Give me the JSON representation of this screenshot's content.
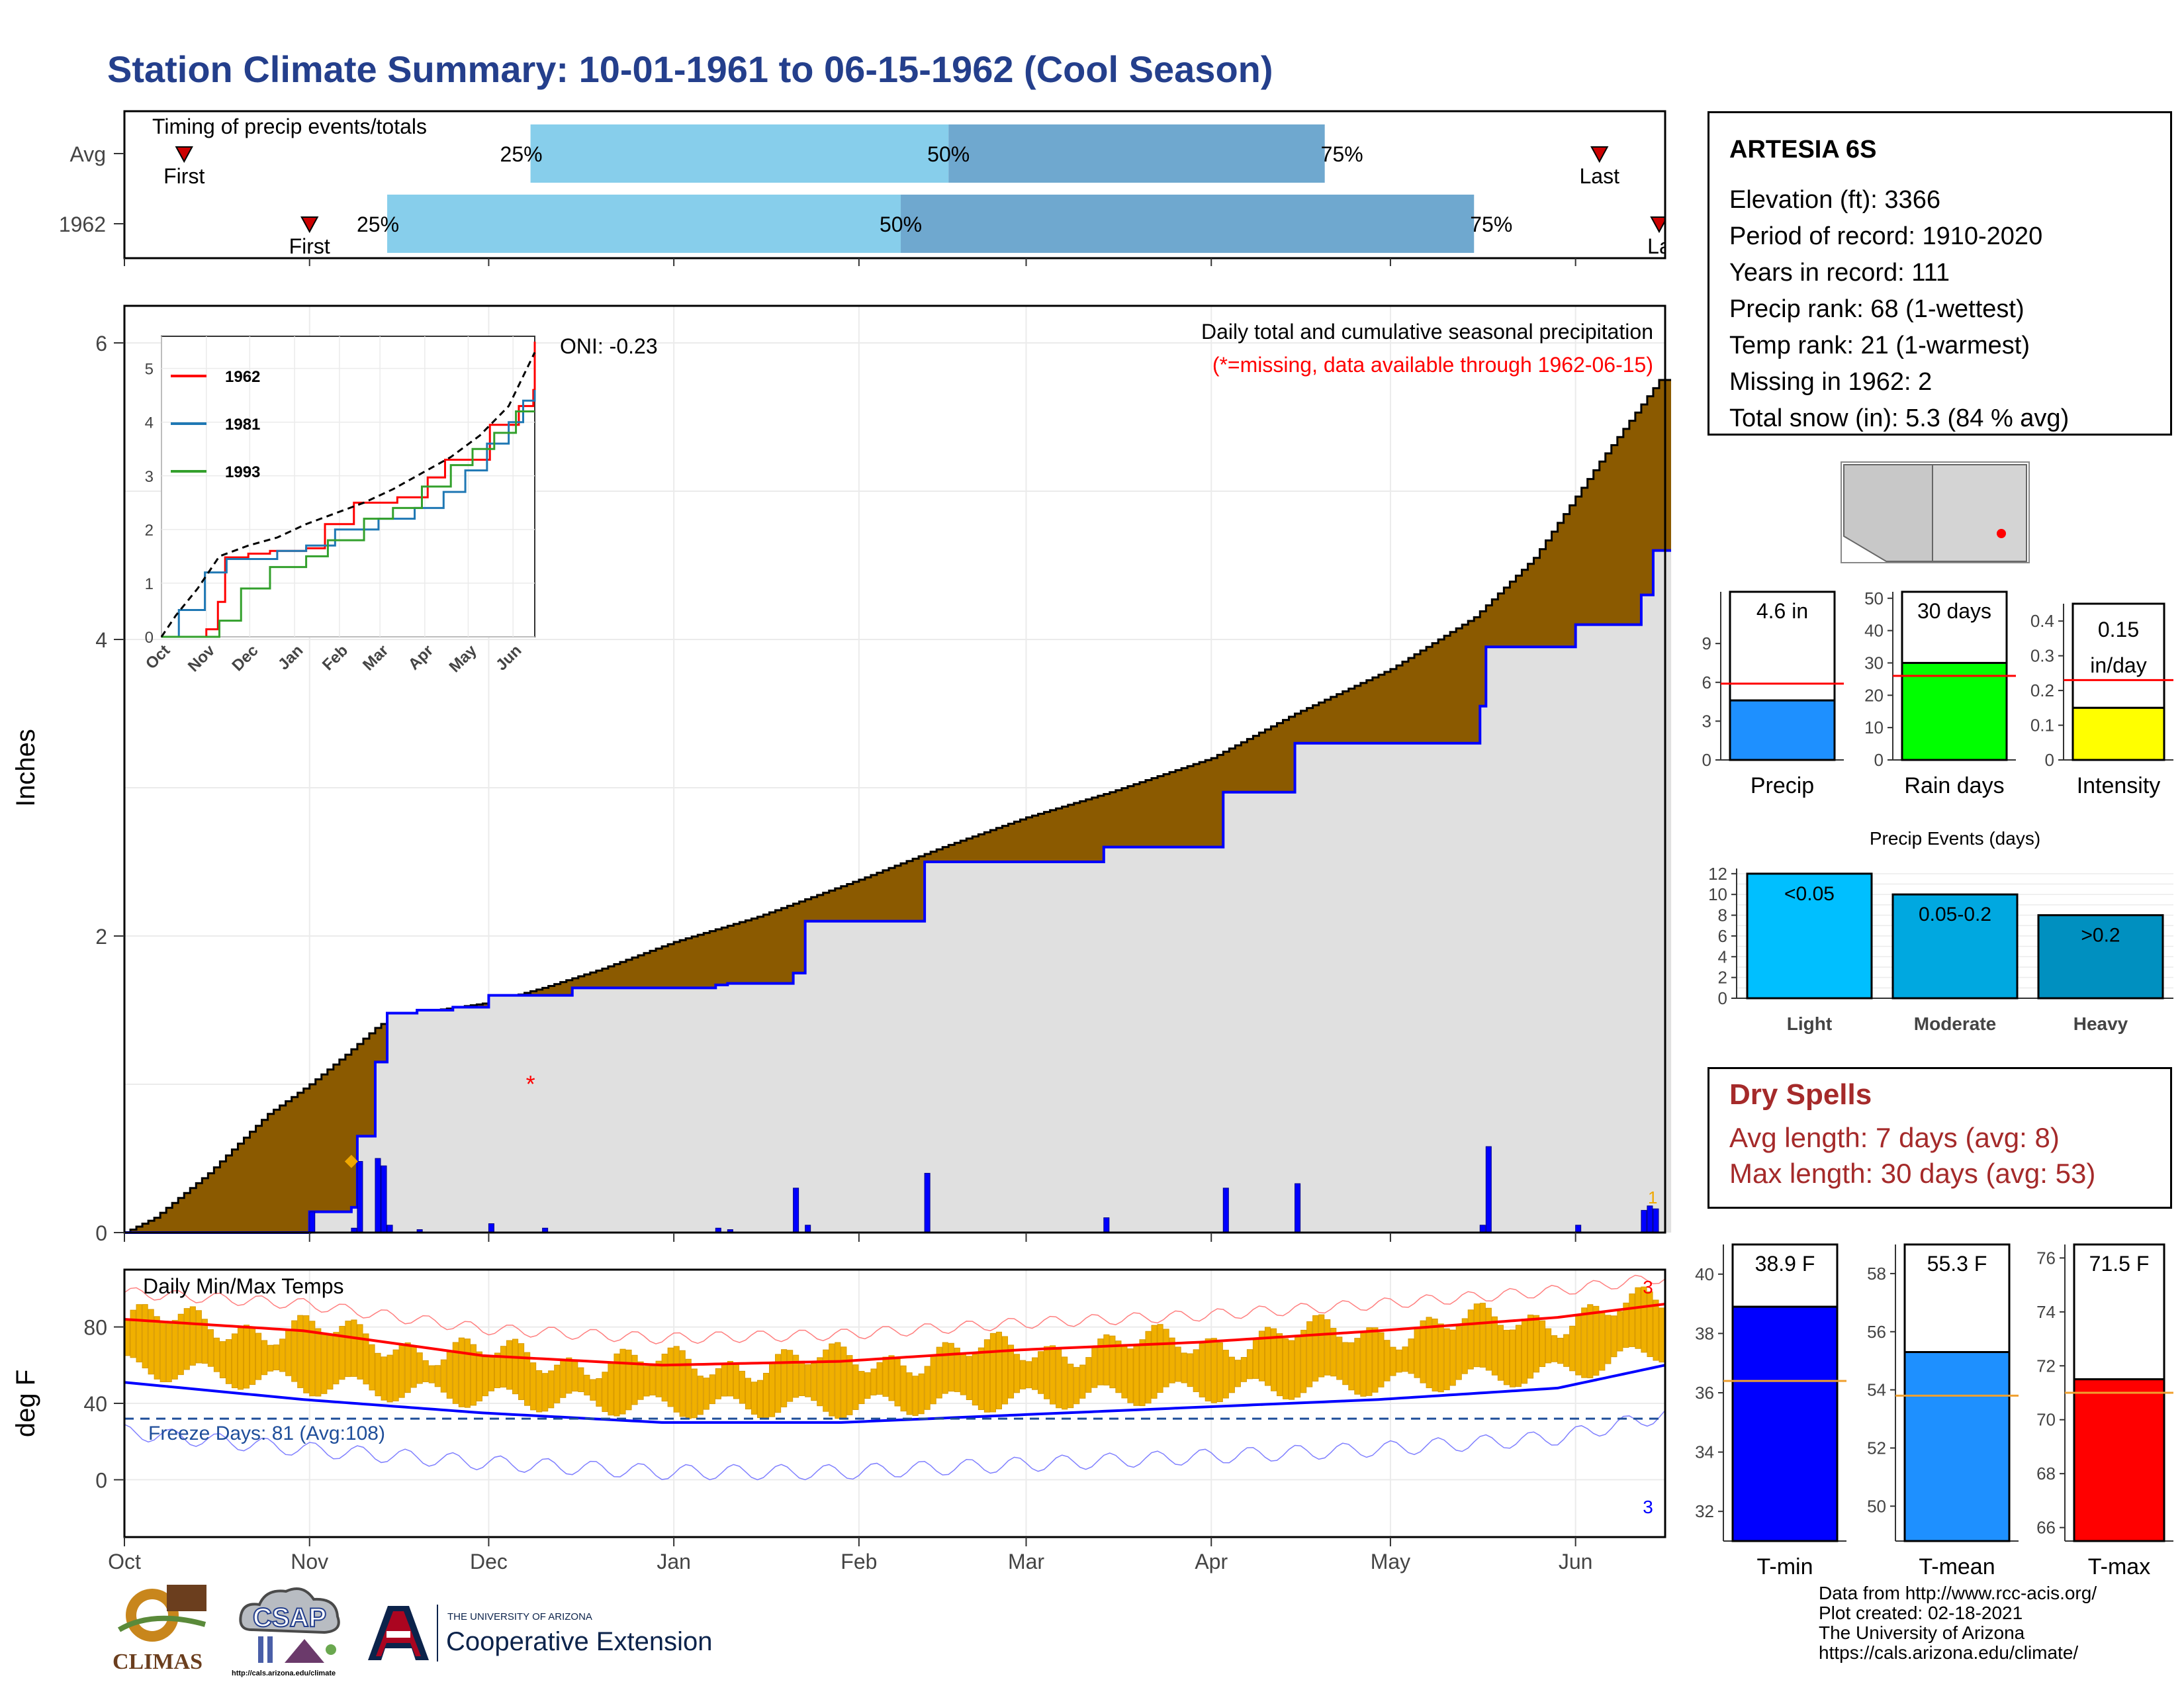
{
  "title": "Station Climate Summary: 10-01-1961 to 06-15-1962 (Cool Season)",
  "colors": {
    "title": "#243f8c",
    "q_light": "#87ceeb",
    "q_dark": "#6fa8cf",
    "brown": "#8b5a00",
    "gray_fill": "#e0e0e0",
    "blue_line": "#0000ff",
    "red": "#ff0000",
    "orange": "#f0a800",
    "dry_spell_red": "#a52a2a"
  },
  "timing": {
    "title": "Timing of precip events/totals",
    "rows": [
      {
        "label": "Avg",
        "first_date": "1961-10-11",
        "last_date": "1962-06-05",
        "q25": "1961-12-08",
        "q50": "1962-02-16",
        "q75": "1962-04-20",
        "first_label": "First",
        "last_label": "Last",
        "q25_label": "25%",
        "q50_label": "50%",
        "q75_label": "75%"
      },
      {
        "label": "1962",
        "first_date": "1961-11-01",
        "last_date": "1962-06-15",
        "q25": "1961-11-14",
        "q50": "1962-02-08",
        "q75": "1962-05-15",
        "first_label": "First",
        "last_label": "La",
        "q25_label": "25%",
        "q50_label": "50%",
        "q75_label": "75%"
      }
    ]
  },
  "chart_data": [
    {
      "type": "area",
      "name": "cumulative_precip",
      "title": "Daily total and cumulative seasonal precipitation",
      "subtitle": "(*=missing, data available through 1962-06-15)",
      "oni_label": "ONI: -0.23",
      "ylabel": "Inches",
      "ylim": [
        0,
        6.25
      ],
      "yticks": [
        0,
        2,
        4,
        6
      ],
      "xlim": [
        "1961-10-01",
        "1962-06-16"
      ],
      "xticks": [
        "Oct",
        "Nov",
        "Dec",
        "Jan",
        "Feb",
        "Mar",
        "Apr",
        "May",
        "Jun"
      ],
      "avg_cumulative": [
        [
          "1961-10-01",
          0.0
        ],
        [
          "1961-10-06",
          0.1
        ],
        [
          "1961-10-15",
          0.4
        ],
        [
          "1961-10-25",
          0.8
        ],
        [
          "1961-11-01",
          1.0
        ],
        [
          "1961-11-07",
          1.2
        ],
        [
          "1961-11-12",
          1.38
        ],
        [
          "1961-11-15",
          1.46
        ],
        [
          "1961-12-01",
          1.55
        ],
        [
          "1961-12-10",
          1.65
        ],
        [
          "1961-12-20",
          1.78
        ],
        [
          "1962-01-01",
          1.96
        ],
        [
          "1962-01-15",
          2.13
        ],
        [
          "1962-02-01",
          2.38
        ],
        [
          "1962-02-15",
          2.6
        ],
        [
          "1962-03-01",
          2.8
        ],
        [
          "1962-03-15",
          2.97
        ],
        [
          "1962-04-01",
          3.2
        ],
        [
          "1962-04-15",
          3.5
        ],
        [
          "1962-05-01",
          3.8
        ],
        [
          "1962-05-15",
          4.15
        ],
        [
          "1962-05-25",
          4.55
        ],
        [
          "1962-06-05",
          5.2
        ],
        [
          "1962-06-15",
          5.75
        ]
      ],
      "cumulative_1962": [
        [
          "1961-10-01",
          0.0
        ],
        [
          "1961-10-31",
          0.0
        ],
        [
          "1961-11-01",
          0.14
        ],
        [
          "1961-11-08",
          0.17
        ],
        [
          "1961-11-09",
          0.65
        ],
        [
          "1961-11-12",
          1.15
        ],
        [
          "1961-11-14",
          1.48
        ],
        [
          "1961-11-19",
          1.5
        ],
        [
          "1961-11-25",
          1.52
        ],
        [
          "1961-12-01",
          1.6
        ],
        [
          "1961-12-15",
          1.65
        ],
        [
          "1962-01-08",
          1.67
        ],
        [
          "1962-01-10",
          1.68
        ],
        [
          "1962-01-21",
          1.75
        ],
        [
          "1962-01-23",
          2.1
        ],
        [
          "1962-02-12",
          2.5
        ],
        [
          "1962-03-14",
          2.6
        ],
        [
          "1962-04-03",
          2.97
        ],
        [
          "1962-04-15",
          3.3
        ],
        [
          "1962-05-16",
          3.55
        ],
        [
          "1962-05-17",
          3.95
        ],
        [
          "1962-06-01",
          4.1
        ],
        [
          "1962-06-12",
          4.3
        ],
        [
          "1962-06-14",
          4.6
        ]
      ],
      "daily_1962": [
        [
          "1961-11-01",
          0.14
        ],
        [
          "1961-11-08",
          0.03
        ],
        [
          "1961-11-09",
          0.48
        ],
        [
          "1961-11-12",
          0.5
        ],
        [
          "1961-11-13",
          0.45
        ],
        [
          "1961-11-14",
          0.05
        ],
        [
          "1961-11-19",
          0.02
        ],
        [
          "1961-12-01",
          0.06
        ],
        [
          "1961-12-10",
          0.03
        ],
        [
          "1962-01-08",
          0.03
        ],
        [
          "1962-01-10",
          0.02
        ],
        [
          "1962-01-21",
          0.3
        ],
        [
          "1962-01-23",
          0.05
        ],
        [
          "1962-02-12",
          0.4
        ],
        [
          "1962-03-14",
          0.1
        ],
        [
          "1962-04-03",
          0.3
        ],
        [
          "1962-04-15",
          0.33
        ],
        [
          "1962-05-16",
          0.05
        ],
        [
          "1962-05-17",
          0.58
        ],
        [
          "1962-06-01",
          0.05
        ],
        [
          "1962-06-12",
          0.15
        ],
        [
          "1962-06-13",
          0.18
        ],
        [
          "1962-06-14",
          0.16
        ]
      ],
      "missing_dates": [
        "1961-12-08"
      ],
      "snow_marker_date": "1961-11-08",
      "snow_marker_value": 0.48,
      "end_label": "1"
    },
    {
      "type": "line",
      "name": "inset_cumulative",
      "yticks": [
        0,
        1,
        2,
        3,
        4,
        5
      ],
      "ylim": [
        0,
        5.6
      ],
      "xticks": [
        "Oct",
        "Nov",
        "Dec",
        "Jan",
        "Feb",
        "Mar",
        "Apr",
        "May",
        "Jun"
      ],
      "series": [
        {
          "name": "1962",
          "color": "#ff0000",
          "points": [
            [
              0,
              0
            ],
            [
              30,
              0
            ],
            [
              31,
              0.14
            ],
            [
              39,
              0.65
            ],
            [
              44,
              1.48
            ],
            [
              60,
              1.55
            ],
            [
              75,
              1.6
            ],
            [
              100,
              1.65
            ],
            [
              113,
              2.1
            ],
            [
              133,
              2.5
            ],
            [
              163,
              2.6
            ],
            [
              184,
              2.97
            ],
            [
              196,
              3.3
            ],
            [
              227,
              3.95
            ],
            [
              247,
              4.3
            ],
            [
              257,
              4.6
            ],
            [
              258,
              5.5
            ]
          ]
        },
        {
          "name": "1981",
          "color": "#1f78b4",
          "points": [
            [
              0,
              0
            ],
            [
              12,
              0.5
            ],
            [
              30,
              1.2
            ],
            [
              45,
              1.45
            ],
            [
              80,
              1.6
            ],
            [
              100,
              1.7
            ],
            [
              120,
              2.0
            ],
            [
              150,
              2.2
            ],
            [
              175,
              2.4
            ],
            [
              195,
              2.7
            ],
            [
              210,
              3.1
            ],
            [
              225,
              3.6
            ],
            [
              240,
              4.0
            ],
            [
              250,
              4.4
            ],
            [
              258,
              4.6
            ]
          ]
        },
        {
          "name": "1993",
          "color": "#33a02c",
          "points": [
            [
              0,
              0
            ],
            [
              40,
              0.3
            ],
            [
              55,
              0.9
            ],
            [
              75,
              1.3
            ],
            [
              100,
              1.5
            ],
            [
              115,
              1.8
            ],
            [
              140,
              2.2
            ],
            [
              160,
              2.4
            ],
            [
              180,
              2.8
            ],
            [
              200,
              3.2
            ],
            [
              215,
              3.5
            ],
            [
              230,
              3.8
            ],
            [
              245,
              4.2
            ],
            [
              258,
              4.2
            ]
          ]
        },
        {
          "name": "avg",
          "color": "#000000",
          "dashed": true,
          "points": [
            [
              0,
              0
            ],
            [
              10,
              0.4
            ],
            [
              25,
              0.9
            ],
            [
              40,
              1.5
            ],
            [
              60,
              1.7
            ],
            [
              80,
              1.85
            ],
            [
              100,
              2.1
            ],
            [
              120,
              2.3
            ],
            [
              140,
              2.5
            ],
            [
              160,
              2.75
            ],
            [
              180,
              3.05
            ],
            [
              200,
              3.35
            ],
            [
              220,
              3.75
            ],
            [
              240,
              4.3
            ],
            [
              258,
              5.3
            ]
          ]
        }
      ]
    },
    {
      "type": "bar",
      "name": "temperatures",
      "title": "Daily Min/Max Temps",
      "ylabel": "deg F",
      "ylim": [
        -30,
        110
      ],
      "yticks": [
        0,
        40,
        80
      ],
      "freeze_label": "Freeze Days: 81 (Avg:108)",
      "freeze_line": 32,
      "avg_max": [
        [
          0,
          84
        ],
        [
          30,
          78
        ],
        [
          60,
          65
        ],
        [
          90,
          60
        ],
        [
          120,
          62
        ],
        [
          150,
          68
        ],
        [
          180,
          72
        ],
        [
          210,
          78
        ],
        [
          240,
          85
        ],
        [
          258,
          92
        ]
      ],
      "avg_min": [
        [
          0,
          51
        ],
        [
          30,
          42
        ],
        [
          60,
          35
        ],
        [
          90,
          30
        ],
        [
          120,
          30
        ],
        [
          150,
          34
        ],
        [
          180,
          38
        ],
        [
          210,
          42
        ],
        [
          240,
          48
        ],
        [
          258,
          60
        ]
      ],
      "max_label": "3",
      "min_label": "3"
    },
    {
      "type": "bar",
      "name": "precip_total",
      "categories": [
        "Precip"
      ],
      "values": [
        4.6
      ],
      "average": 5.9,
      "ylim": [
        0,
        13
      ],
      "yticks": [
        0,
        3,
        6,
        9
      ],
      "label": "4.6 in"
    },
    {
      "type": "bar",
      "name": "rain_days",
      "categories": [
        "Rain days"
      ],
      "values": [
        30
      ],
      "average": 26,
      "ylim": [
        0,
        52
      ],
      "yticks": [
        0,
        10,
        20,
        30,
        40,
        50
      ],
      "label": "30 days"
    },
    {
      "type": "bar",
      "name": "intensity",
      "categories": [
        "Intensity"
      ],
      "values": [
        0.15
      ],
      "average": 0.23,
      "ylim": [
        0,
        0.45
      ],
      "yticks": [
        0.0,
        0.1,
        0.2,
        0.3,
        0.4
      ],
      "label_line1": "0.15",
      "label_line2": "in/day"
    },
    {
      "type": "bar",
      "name": "precip_events",
      "title": "Precip Events (days)",
      "categories": [
        "Light",
        "Moderate",
        "Heavy"
      ],
      "values": [
        12,
        10,
        8
      ],
      "labels": [
        "<0.05",
        "0.05-0.2",
        ">0.2"
      ],
      "ylim": [
        0,
        12.5
      ],
      "yticks": [
        0,
        2,
        4,
        6,
        8,
        10,
        12
      ]
    },
    {
      "type": "bar",
      "name": "tmin",
      "categories": [
        "T-min"
      ],
      "values": [
        38.9
      ],
      "average": 36.4,
      "ylim": [
        31,
        41
      ],
      "yticks": [
        32,
        34,
        36,
        38,
        40
      ],
      "label": "38.9 F"
    },
    {
      "type": "bar",
      "name": "tmean",
      "categories": [
        "T-mean"
      ],
      "values": [
        55.3
      ],
      "average": 53.8,
      "ylim": [
        48.8,
        59
      ],
      "yticks": [
        50,
        52,
        54,
        56,
        58
      ],
      "label": "55.3 F"
    },
    {
      "type": "bar",
      "name": "tmax",
      "categories": [
        "T-max"
      ],
      "values": [
        71.5
      ],
      "average": 71.0,
      "ylim": [
        65.5,
        76.5
      ],
      "yticks": [
        66,
        68,
        70,
        72,
        74,
        76
      ],
      "label": "71.5 F"
    }
  ],
  "station": {
    "name": "ARTESIA 6S",
    "lines": [
      "Elevation (ft): 3366",
      "Period of record: 1910-2020",
      "Years in record: 111",
      "Precip rank: 68 (1-wettest)",
      "Temp rank: 21 (1-warmest)",
      "Missing in 1962: 2",
      "Total snow (in): 5.3 (84 % avg)"
    ]
  },
  "dry_spells": {
    "title": "Dry Spells",
    "avg_line": "Avg length: 7 days (avg: 8)",
    "max_line": "Max length: 30 days (avg: 53)"
  },
  "footer": {
    "lines": [
      "Data from http://www.rcc-acis.org/",
      "Plot created: 02-18-2021",
      "The University of Arizona",
      "https://cals.arizona.edu/climate/"
    ]
  },
  "logos": {
    "climas": "CLIMAS",
    "csap": "CSAP",
    "csap_url": "http://cals.arizona.edu/climate",
    "ua_small": "THE UNIVERSITY OF ARIZONA",
    "ua_big": "Cooperative Extension"
  }
}
